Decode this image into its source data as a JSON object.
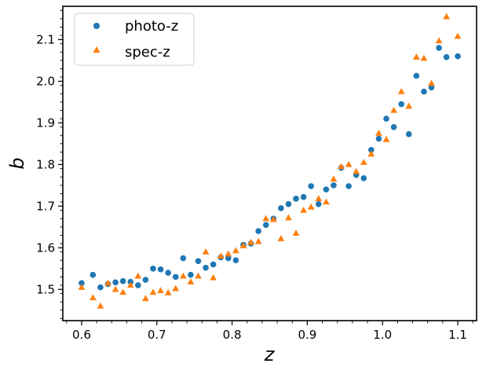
{
  "chart_data": {
    "type": "scatter",
    "title": "",
    "xlabel": "z",
    "ylabel": "b",
    "xlim": [
      0.575,
      1.125
    ],
    "ylim": [
      1.425,
      2.18
    ],
    "x_ticks": [
      "0.6",
      "0.7",
      "0.8",
      "0.9",
      "1.0",
      "1.1"
    ],
    "y_ticks": [
      "1.5",
      "1.6",
      "1.7",
      "1.8",
      "1.9",
      "2.0",
      "2.1"
    ],
    "grid": false,
    "legend_position": "top-left",
    "series": [
      {
        "name": "photo-z",
        "marker": "circle",
        "color": "#1f77b4",
        "x": [
          0.6,
          0.615,
          0.625,
          0.635,
          0.645,
          0.655,
          0.665,
          0.675,
          0.685,
          0.695,
          0.705,
          0.715,
          0.725,
          0.735,
          0.745,
          0.755,
          0.765,
          0.775,
          0.785,
          0.795,
          0.805,
          0.815,
          0.825,
          0.835,
          0.845,
          0.855,
          0.865,
          0.875,
          0.885,
          0.895,
          0.905,
          0.915,
          0.925,
          0.935,
          0.945,
          0.955,
          0.965,
          0.975,
          0.985,
          0.995,
          1.005,
          1.015,
          1.025,
          1.035,
          1.045,
          1.055,
          1.065,
          1.075,
          1.085,
          1.1
        ],
        "y": [
          1.515,
          1.535,
          1.505,
          1.513,
          1.517,
          1.52,
          1.518,
          1.51,
          1.523,
          1.55,
          1.548,
          1.54,
          1.53,
          1.575,
          1.535,
          1.568,
          1.552,
          1.56,
          1.577,
          1.575,
          1.57,
          1.607,
          1.61,
          1.64,
          1.655,
          1.67,
          1.695,
          1.705,
          1.718,
          1.722,
          1.748,
          1.705,
          1.74,
          1.75,
          1.792,
          1.748,
          1.775,
          1.767,
          1.835,
          1.862,
          1.91,
          1.89,
          1.945,
          1.873,
          2.013,
          1.975,
          1.985,
          2.08,
          2.058,
          2.06
        ]
      },
      {
        "name": "spec-z",
        "marker": "triangle",
        "color": "#ff7f0e",
        "x": [
          0.6,
          0.615,
          0.625,
          0.635,
          0.645,
          0.655,
          0.665,
          0.675,
          0.685,
          0.695,
          0.705,
          0.715,
          0.725,
          0.735,
          0.745,
          0.755,
          0.765,
          0.775,
          0.785,
          0.795,
          0.805,
          0.815,
          0.825,
          0.835,
          0.845,
          0.855,
          0.865,
          0.875,
          0.885,
          0.895,
          0.905,
          0.915,
          0.925,
          0.935,
          0.945,
          0.955,
          0.965,
          0.975,
          0.985,
          0.995,
          1.005,
          1.015,
          1.025,
          1.035,
          1.045,
          1.055,
          1.065,
          1.075,
          1.085,
          1.1
        ],
        "y": [
          1.505,
          1.48,
          1.46,
          1.515,
          1.5,
          1.493,
          1.51,
          1.532,
          1.478,
          1.493,
          1.497,
          1.492,
          1.502,
          1.532,
          1.518,
          1.532,
          1.59,
          1.528,
          1.58,
          1.585,
          1.593,
          1.605,
          1.613,
          1.615,
          1.67,
          1.668,
          1.622,
          1.672,
          1.635,
          1.69,
          1.698,
          1.718,
          1.71,
          1.765,
          1.795,
          1.8,
          1.783,
          1.805,
          1.825,
          1.875,
          1.86,
          1.93,
          1.975,
          1.94,
          2.058,
          2.055,
          1.995,
          2.097,
          2.155,
          2.108
        ]
      }
    ]
  }
}
